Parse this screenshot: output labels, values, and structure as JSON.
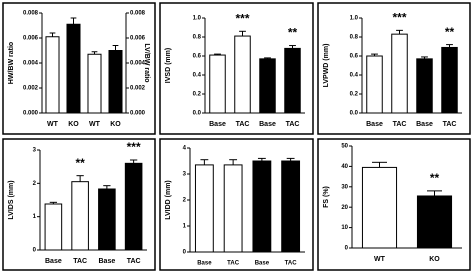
{
  "chart_data": [
    {
      "type": "bar",
      "ylabel": "HW/BW ratio",
      "y2label": "LV/BW ratio",
      "categories": [
        "WT",
        "KO",
        "WT",
        "KO"
      ],
      "values": [
        0.0061,
        0.0071,
        0.0047,
        0.005
      ],
      "errors": [
        0.0003,
        0.0005,
        0.0002,
        0.0004
      ],
      "bar_colors": [
        "#ffffff",
        "#000000",
        "#ffffff",
        "#000000"
      ],
      "bar_axis": [
        "y",
        "y",
        "y2",
        "y2"
      ],
      "ylim": [
        0,
        0.008
      ],
      "yticks": [
        {
          "value": 0,
          "label": "0.000"
        },
        0.002,
        0.004,
        0.006,
        0.008
      ],
      "y2lim": [
        0,
        0.008
      ],
      "y2ticks": [
        {
          "value": 0,
          "label": "0.000"
        },
        0.002,
        0.004,
        0.006,
        0.008
      ]
    },
    {
      "type": "bar",
      "ylabel": "IVSD (mm)",
      "categories": [
        "Base",
        "TAC",
        "Base",
        "TAC"
      ],
      "values": [
        0.61,
        0.81,
        0.57,
        0.68
      ],
      "errors": [
        0.01,
        0.05,
        0.01,
        0.03
      ],
      "bar_colors": [
        "#ffffff",
        "#ffffff",
        "#000000",
        "#000000"
      ],
      "significance": [
        null,
        "***",
        null,
        "**"
      ],
      "ylim": [
        0,
        1
      ],
      "yticks": [
        {
          "value": 0,
          "label": "0.0"
        },
        0.2,
        0.4,
        0.6,
        0.8,
        {
          "value": 1,
          "label": "1.0"
        }
      ]
    },
    {
      "type": "bar",
      "ylabel": "LVPWD (mm)",
      "categories": [
        "Base",
        "TAC",
        "Base",
        "TAC"
      ],
      "values": [
        0.6,
        0.83,
        0.57,
        0.69
      ],
      "errors": [
        0.02,
        0.04,
        0.02,
        0.03
      ],
      "bar_colors": [
        "#ffffff",
        "#ffffff",
        "#000000",
        "#000000"
      ],
      "significance": [
        null,
        "***",
        null,
        "**"
      ],
      "ylim": [
        0,
        1
      ],
      "yticks": [
        {
          "value": 0,
          "label": "0.0"
        },
        0.2,
        0.4,
        0.6,
        0.8,
        {
          "value": 1,
          "label": "1.0"
        }
      ]
    },
    {
      "type": "bar",
      "ylabel": "LVIDS (mm)",
      "categories": [
        "Base",
        "TAC",
        "Base",
        "TAC"
      ],
      "values": [
        1.38,
        2.05,
        1.83,
        2.6
      ],
      "errors": [
        0.05,
        0.18,
        0.1,
        0.1
      ],
      "bar_colors": [
        "#ffffff",
        "#ffffff",
        "#000000",
        "#000000"
      ],
      "significance": [
        null,
        "**",
        null,
        "***"
      ],
      "ylim": [
        0,
        3
      ],
      "yticks": [
        0,
        1,
        2,
        3
      ]
    },
    {
      "type": "bar",
      "ylabel": "LVIDD (mm)",
      "categories": [
        "Base",
        "TAC",
        "Base",
        "TAC"
      ],
      "values": [
        3.35,
        3.35,
        3.5,
        3.5
      ],
      "errors": [
        0.2,
        0.2,
        0.1,
        0.1
      ],
      "bar_colors": [
        "#ffffff",
        "#ffffff",
        "#000000",
        "#000000"
      ],
      "ylim": [
        0,
        4
      ],
      "yticks": [
        0,
        1,
        2,
        3,
        4
      ]
    },
    {
      "type": "bar",
      "ylabel": "FS (%)",
      "categories": [
        "WT",
        "KO"
      ],
      "values": [
        39.5,
        25.5
      ],
      "errors": [
        2.5,
        2.5
      ],
      "bar_colors": [
        "#ffffff",
        "#000000"
      ],
      "significance": [
        null,
        "**"
      ],
      "ylim": [
        0,
        50
      ],
      "yticks": [
        0,
        10,
        20,
        30,
        40,
        50
      ]
    }
  ]
}
